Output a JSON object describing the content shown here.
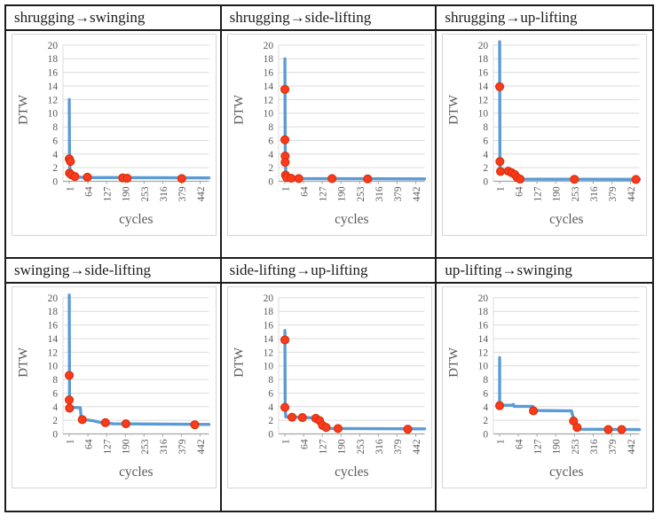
{
  "figure": {
    "description_colors": {
      "line": "#5b9bd5",
      "marker_fill": "#ff3a1c",
      "marker_stroke": "#d8330e",
      "grid": "#dcdcdc",
      "axis_line": "#a6a6a6",
      "tick_label": "#595959",
      "axis_title": "#595959",
      "chart_border": "#d8d6d4",
      "table_border": "#1c1c1c"
    }
  },
  "chart_data": [
    {
      "type": "line",
      "title": "shrugging→swinging",
      "xlabel": "cycles",
      "ylabel": "DTW",
      "ylim": [
        0,
        20
      ],
      "ytick_step": 2,
      "xticks": [
        1,
        64,
        127,
        190,
        253,
        316,
        379,
        442
      ],
      "xlim": [
        -20,
        472
      ],
      "grid": true,
      "legend": "none",
      "line": [
        [
          1,
          12
        ],
        [
          2,
          3.2
        ],
        [
          3,
          1.9
        ],
        [
          5,
          1.2
        ],
        [
          10,
          0.85
        ],
        [
          20,
          0.65
        ],
        [
          60,
          0.55
        ],
        [
          472,
          0.5
        ]
      ],
      "markers": [
        [
          1,
          3.3
        ],
        [
          2,
          1.2
        ],
        [
          5,
          2.9
        ],
        [
          8,
          0.95
        ],
        [
          20,
          0.7
        ],
        [
          62,
          0.6
        ],
        [
          181,
          0.5
        ],
        [
          196,
          0.45
        ],
        [
          380,
          0.4
        ]
      ]
    },
    {
      "type": "line",
      "title": "shrugging→side-lifting",
      "xlabel": "cycles",
      "ylabel": "DTW",
      "ylim": [
        0,
        20
      ],
      "ytick_step": 2,
      "xticks": [
        1,
        64,
        127,
        190,
        253,
        316,
        379,
        442
      ],
      "xlim": [
        -20,
        472
      ],
      "grid": true,
      "legend": "none",
      "line": [
        [
          1,
          18
        ],
        [
          2,
          6.0
        ],
        [
          2.5,
          3.6
        ],
        [
          3,
          2.7
        ],
        [
          4,
          1.0
        ],
        [
          6,
          0.7
        ],
        [
          12,
          0.5
        ],
        [
          30,
          0.4
        ],
        [
          472,
          0.35
        ]
      ],
      "markers": [
        [
          1,
          13.5
        ],
        [
          1,
          6.1
        ],
        [
          2,
          3.7
        ],
        [
          2,
          2.8
        ],
        [
          3,
          0.9
        ],
        [
          7,
          0.55
        ],
        [
          22,
          0.45
        ],
        [
          48,
          0.4
        ],
        [
          160,
          0.4
        ],
        [
          280,
          0.35
        ]
      ]
    },
    {
      "type": "line",
      "title": "shrugging→up-lifting",
      "xlabel": "cycles",
      "ylabel": "DTW",
      "ylim": [
        0,
        20
      ],
      "ytick_step": 2,
      "xticks": [
        1,
        64,
        127,
        190,
        253,
        316,
        379,
        442
      ],
      "xlim": [
        -20,
        472
      ],
      "grid": true,
      "legend": "none",
      "line": [
        [
          1,
          20.5
        ],
        [
          2,
          2.9
        ],
        [
          3,
          1.5
        ],
        [
          28,
          1.4
        ],
        [
          45,
          1.2
        ],
        [
          55,
          0.95
        ],
        [
          66,
          0.5
        ],
        [
          76,
          0.32
        ],
        [
          472,
          0.3
        ]
      ],
      "markers": [
        [
          1,
          13.9
        ],
        [
          2,
          2.9
        ],
        [
          4,
          1.45
        ],
        [
          30,
          1.5
        ],
        [
          42,
          1.25
        ],
        [
          52,
          1.0
        ],
        [
          60,
          0.55
        ],
        [
          70,
          0.32
        ],
        [
          253,
          0.3
        ],
        [
          460,
          0.27
        ]
      ]
    },
    {
      "type": "line",
      "title": "swinging→side-lifting",
      "xlabel": "cycles",
      "ylabel": "DTW",
      "ylim": [
        0,
        20
      ],
      "ytick_step": 2,
      "xticks": [
        1,
        64,
        127,
        190,
        253,
        316,
        379,
        442
      ],
      "xlim": [
        -20,
        472
      ],
      "grid": true,
      "legend": "none",
      "line": [
        [
          1,
          20.4
        ],
        [
          2,
          5.1
        ],
        [
          3,
          3.9
        ],
        [
          38,
          3.85
        ],
        [
          42,
          2.15
        ],
        [
          80,
          1.95
        ],
        [
          115,
          1.6
        ],
        [
          150,
          1.5
        ],
        [
          472,
          1.4
        ]
      ],
      "markers": [
        [
          1,
          8.6
        ],
        [
          1,
          5.0
        ],
        [
          2,
          3.8
        ],
        [
          45,
          2.1
        ],
        [
          123,
          1.65
        ],
        [
          192,
          1.5
        ],
        [
          424,
          1.35
        ]
      ]
    },
    {
      "type": "line",
      "title": "side-lifting→up-lifting",
      "xlabel": "cycles",
      "ylabel": "DTW",
      "ylim": [
        0,
        20
      ],
      "ytick_step": 2,
      "xticks": [
        1,
        64,
        127,
        190,
        253,
        316,
        379,
        442
      ],
      "xlim": [
        -20,
        472
      ],
      "grid": true,
      "legend": "none",
      "line": [
        [
          1,
          15.2
        ],
        [
          2,
          4.0
        ],
        [
          4,
          2.5
        ],
        [
          42,
          2.45
        ],
        [
          100,
          2.35
        ],
        [
          115,
          2.0
        ],
        [
          128,
          1.3
        ],
        [
          140,
          0.95
        ],
        [
          155,
          0.8
        ],
        [
          472,
          0.75
        ]
      ],
      "markers": [
        [
          1,
          13.8
        ],
        [
          1,
          3.9
        ],
        [
          25,
          2.45
        ],
        [
          60,
          2.4
        ],
        [
          105,
          2.3
        ],
        [
          118,
          1.95
        ],
        [
          128,
          1.25
        ],
        [
          140,
          0.95
        ],
        [
          180,
          0.8
        ],
        [
          415,
          0.7
        ]
      ]
    },
    {
      "type": "line",
      "title": "up-lifting→swinging",
      "xlabel": "cycles",
      "ylabel": "DTW",
      "ylim": [
        0,
        20
      ],
      "ytick_step": 2,
      "xticks": [
        1,
        64,
        127,
        190,
        253,
        316,
        379,
        442
      ],
      "xlim": [
        -20,
        472
      ],
      "grid": true,
      "legend": "none",
      "line": [
        [
          1,
          11.2
        ],
        [
          1,
          4.2
        ],
        [
          42,
          4.2
        ],
        [
          47,
          4.35
        ],
        [
          50,
          4.05
        ],
        [
          113,
          4.05
        ],
        [
          118,
          3.45
        ],
        [
          243,
          3.4
        ],
        [
          252,
          1.9
        ],
        [
          258,
          1.1
        ],
        [
          272,
          0.7
        ],
        [
          472,
          0.65
        ]
      ],
      "markers": [
        [
          1,
          4.15
        ],
        [
          115,
          3.4
        ],
        [
          250,
          1.9
        ],
        [
          262,
          0.95
        ],
        [
          367,
          0.65
        ],
        [
          412,
          0.65
        ]
      ]
    }
  ]
}
